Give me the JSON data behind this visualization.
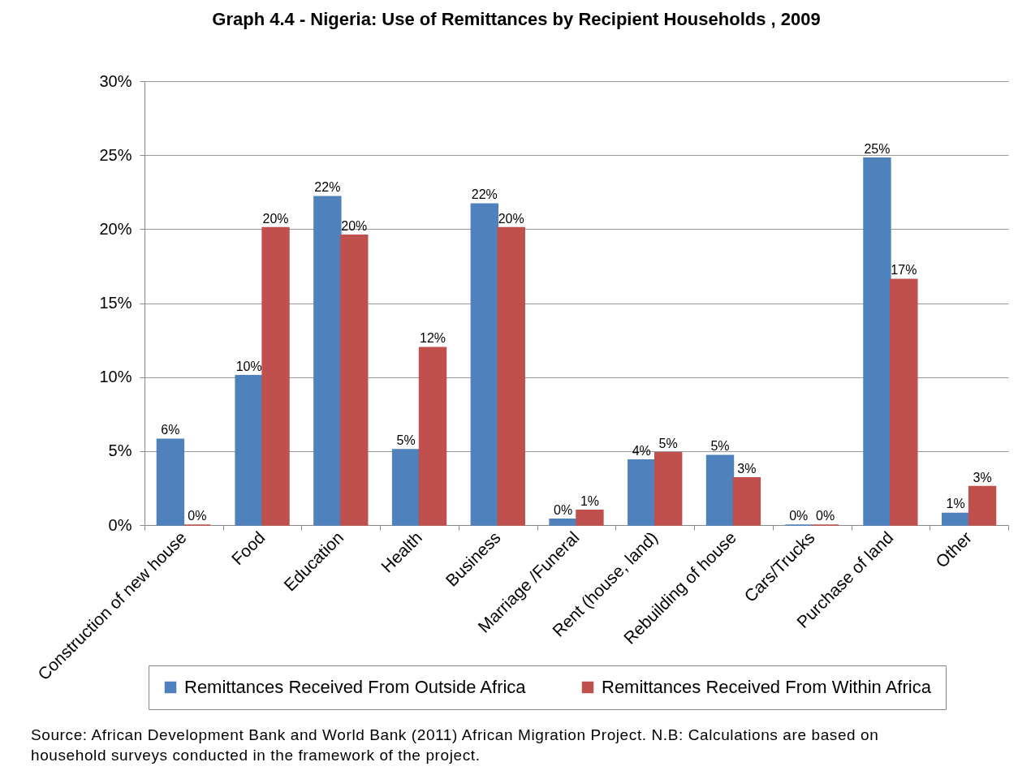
{
  "chart_data": {
    "type": "bar",
    "title": "Graph 4.4 - Nigeria: Use of Remittances  by Recipient Households , 2009",
    "categories": [
      "Construction of new house",
      "Food",
      "Education",
      "Health",
      "Business",
      "Marriage /Funeral",
      "Rent (house, land)",
      "Rebuilding of house",
      "Cars/Trucks",
      "Purchase of land",
      "Other"
    ],
    "series": [
      {
        "name": "Remittances Received From Outside Africa",
        "color": "#4f81bd",
        "values": [
          5.8,
          10.1,
          22.2,
          5.1,
          21.7,
          0.4,
          4.4,
          4.7,
          0,
          24.8,
          0.8
        ],
        "value_labels": [
          "6%",
          "10%",
          "22%",
          "5%",
          "22%",
          "0%",
          "4%",
          "5%",
          "0%",
          "25%",
          "1%"
        ]
      },
      {
        "name": "Remittances Received From Within Africa",
        "color": "#c0504d",
        "values": [
          0,
          20.1,
          19.6,
          12.0,
          20.1,
          1.0,
          4.9,
          3.2,
          0,
          16.6,
          2.6
        ],
        "value_labels": [
          "0%",
          "20%",
          "20%",
          "12%",
          "20%",
          "1%",
          "5%",
          "3%",
          "0%",
          "17%",
          "3%"
        ]
      }
    ],
    "ylim": [
      0,
      30
    ],
    "yticks": [
      {
        "value": 0,
        "label": "0%"
      },
      {
        "value": 5,
        "label": "5%"
      },
      {
        "value": 10,
        "label": "10%"
      },
      {
        "value": 15,
        "label": "15%"
      },
      {
        "value": 20,
        "label": "20%"
      },
      {
        "value": 25,
        "label": "25%"
      },
      {
        "value": 30,
        "label": "30%"
      }
    ],
    "grid": "y",
    "legend": "bottom",
    "annotations": [
      "Source: African Development Bank and World  Bank  (2011) African Migration Project. N.B: Calculations are based on household surveys conducted in the framework of the project."
    ]
  }
}
